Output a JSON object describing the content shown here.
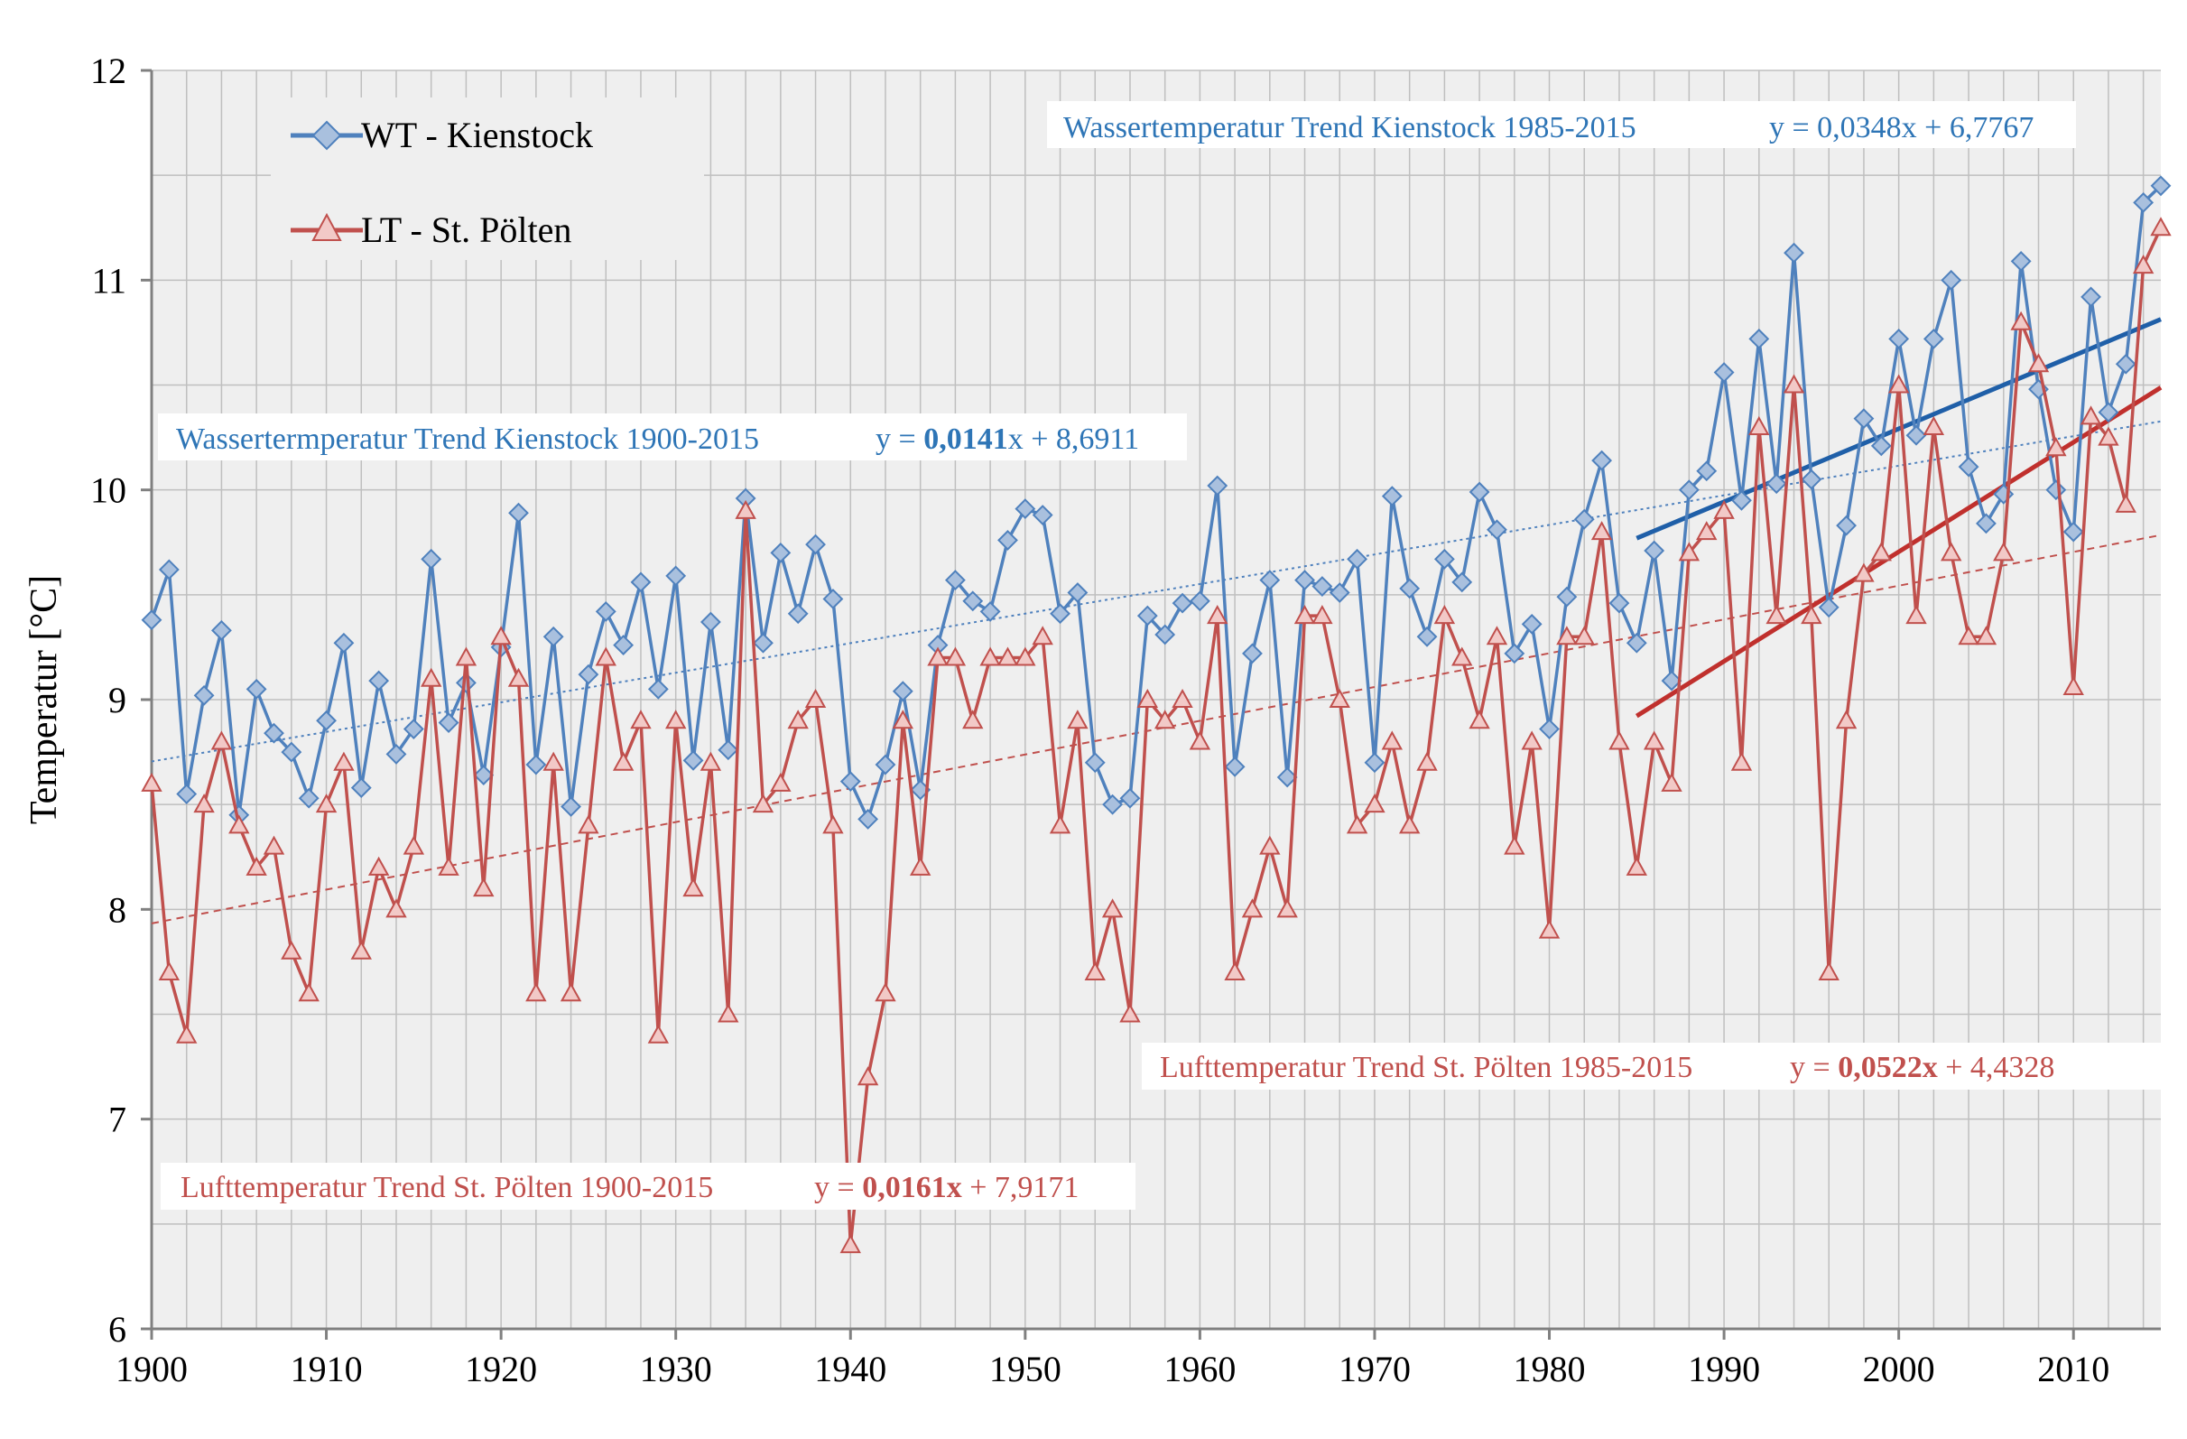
{
  "chart_data": {
    "type": "line",
    "ylabel": "Temperatur [°C]",
    "xlabel": "",
    "xlim": [
      1900,
      2015
    ],
    "ylim": [
      6,
      12
    ],
    "x_ticks": [
      1900,
      1910,
      1920,
      1930,
      1940,
      1950,
      1960,
      1970,
      1980,
      1990,
      2000,
      2010
    ],
    "y_ticks": [
      6,
      7,
      8,
      9,
      10,
      11,
      12
    ],
    "grid": true,
    "legend_position": "top-left",
    "colors": {
      "wt": "#4F81BD",
      "lt": "#C0504D",
      "wt_trend": "#1F5FA8",
      "lt_trend": "#C0302D",
      "grid": "#BFBFBF",
      "plot_bg": "#EFEFEF"
    },
    "series": [
      {
        "name": "WT - Kienstock",
        "marker": "diamond",
        "x_start": 1900,
        "values": [
          9.38,
          9.62,
          8.55,
          9.02,
          9.33,
          8.45,
          9.05,
          8.84,
          8.75,
          8.53,
          8.9,
          9.27,
          8.58,
          9.09,
          8.74,
          8.86,
          9.67,
          8.89,
          9.08,
          8.64,
          9.25,
          9.89,
          8.69,
          9.3,
          8.49,
          9.12,
          9.42,
          9.26,
          9.56,
          9.05,
          9.59,
          8.71,
          9.37,
          8.76,
          9.96,
          9.27,
          9.7,
          9.41,
          9.74,
          9.48,
          8.61,
          8.43,
          8.69,
          9.04,
          8.57,
          9.26,
          9.57,
          9.47,
          9.42,
          9.76,
          9.91,
          9.88,
          9.41,
          9.51,
          8.7,
          8.5,
          8.53,
          9.4,
          9.31,
          9.46,
          9.47,
          10.02,
          8.68,
          9.22,
          9.57,
          8.63,
          9.57,
          9.54,
          9.51,
          9.67,
          8.7,
          9.97,
          9.53,
          9.3,
          9.67,
          9.56,
          9.99,
          9.81,
          9.22,
          9.36,
          8.86,
          9.49,
          9.86,
          10.14,
          9.46,
          9.27,
          9.71,
          9.09,
          10.0,
          10.09,
          10.56,
          9.95,
          10.72,
          10.03,
          11.13,
          10.05,
          9.44,
          9.83,
          10.34,
          10.21,
          10.72,
          10.26,
          10.72,
          11.0,
          10.11,
          9.84,
          9.98,
          11.09,
          10.48,
          10.0,
          9.8,
          10.92,
          10.37,
          10.6,
          11.37,
          11.45
        ]
      },
      {
        "name": "LT - St. Pölten",
        "marker": "triangle",
        "x_start": 1900,
        "values": [
          8.6,
          7.7,
          7.4,
          8.5,
          8.8,
          8.4,
          8.2,
          8.3,
          7.8,
          7.6,
          8.5,
          8.7,
          7.8,
          8.2,
          8.0,
          8.3,
          9.1,
          8.2,
          9.2,
          8.1,
          9.3,
          9.1,
          7.6,
          8.7,
          7.6,
          8.4,
          9.2,
          8.7,
          8.9,
          7.4,
          8.9,
          8.1,
          8.7,
          7.5,
          9.9,
          8.5,
          8.6,
          8.9,
          9.0,
          8.4,
          6.4,
          7.2,
          7.6,
          8.9,
          8.2,
          9.2,
          9.2,
          8.9,
          9.2,
          9.2,
          9.2,
          9.3,
          8.4,
          8.9,
          7.7,
          8.0,
          7.5,
          9.0,
          8.9,
          9.0,
          8.8,
          9.4,
          7.7,
          8.0,
          8.3,
          8.0,
          9.4,
          9.4,
          9.0,
          8.4,
          8.5,
          8.8,
          8.4,
          8.7,
          9.4,
          9.2,
          8.9,
          9.3,
          8.3,
          8.8,
          7.9,
          9.3,
          9.3,
          9.8,
          8.8,
          8.2,
          8.8,
          8.6,
          9.7,
          9.8,
          9.9,
          8.7,
          10.3,
          9.4,
          10.5,
          9.4,
          7.7,
          8.9,
          9.6,
          9.7,
          10.5,
          9.4,
          10.3,
          9.7,
          9.3,
          9.3,
          9.7,
          10.8,
          10.6,
          10.2,
          9.06,
          10.35,
          10.25,
          9.93,
          11.07,
          11.25
        ]
      }
    ],
    "trends": [
      {
        "name": "Wassertermperatur Trend Kienstock 1900-2015",
        "series": "WT - Kienstock",
        "x_range": [
          1900,
          2015
        ],
        "slope": 0.0141,
        "intercept": 8.6911,
        "style": "dotted"
      },
      {
        "name": "Wassertemperatur Trend Kienstock 1985-2015",
        "series": "WT - Kienstock",
        "x_range": [
          1985,
          2015
        ],
        "slope": 0.0348,
        "intercept": 6.7767,
        "style": "solid"
      },
      {
        "name": "Lufttemperatur Trend St. Pölten 1900-2015",
        "series": "LT - St. Pölten",
        "x_range": [
          1900,
          2015
        ],
        "slope": 0.0161,
        "intercept": 7.9171,
        "style": "dashed"
      },
      {
        "name": "Lufttemperatur Trend St. Pölten 1985-2015",
        "series": "LT - St. Pölten",
        "x_range": [
          1985,
          2015
        ],
        "slope": 0.0522,
        "intercept": 4.4328,
        "style": "solid"
      }
    ]
  },
  "legend": {
    "wt_label": "WT - Kienstock",
    "lt_label": "LT - St. Pölten"
  },
  "annotations": {
    "wt_long_label": "Wassertermperatur Trend Kienstock 1900-2015",
    "wt_long_eq_prefix": "y = ",
    "wt_long_eq_slope": "0,0141",
    "wt_long_eq_suffix": "x + 8,6911",
    "wt_short_label": "Wassertemperatur Trend Kienstock 1985-2015",
    "wt_short_eq": "y = 0,0348x  + 6,7767",
    "lt_long_label": "Lufttemperatur Trend St. Pölten 1900-2015",
    "lt_long_eq_prefix": "y = ",
    "lt_long_eq_slope": "0,0161x",
    "lt_long_eq_suffix": " + 7,9171",
    "lt_short_label": "Lufttemperatur Trend St. Pölten 1985-2015",
    "lt_short_eq_prefix": "y = ",
    "lt_short_eq_slope": "0,0522x",
    "lt_short_eq_suffix": " + 4,4328"
  }
}
